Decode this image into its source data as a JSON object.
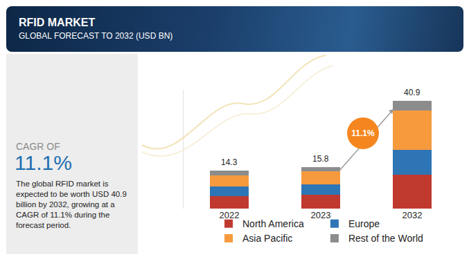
{
  "header": {
    "title": "RFID MARKET",
    "subtitle": "GLOBAL FORECAST TO 2032 (USD BN)"
  },
  "side_panel": {
    "label": "CAGR OF",
    "value": "11.1%",
    "text": "The global RFID market is expected to be worth USD 40.9 billion by 2032, growing at a CAGR of 11.1% during the forecast period."
  },
  "chart_data": {
    "type": "bar",
    "stacked": true,
    "categories": [
      "2022",
      "2023",
      "2032"
    ],
    "series": [
      {
        "name": "North America",
        "color": "#c0392f",
        "values": [
          4.8,
          5.2,
          12.8
        ]
      },
      {
        "name": "Europe",
        "color": "#2e75b6",
        "values": [
          3.5,
          3.9,
          9.5
        ]
      },
      {
        "name": "Asia Pacific",
        "color": "#f79a3e",
        "values": [
          4.3,
          5.0,
          14.8
        ]
      },
      {
        "name": "Rest of the World",
        "color": "#8c8c8c",
        "values": [
          1.7,
          1.7,
          3.8
        ]
      }
    ],
    "totals": [
      14.3,
      15.8,
      40.9
    ],
    "annotations": [
      {
        "text": "11.1%"
      }
    ],
    "ylim": [
      0,
      45
    ],
    "yticks": [],
    "tick_labels": "x",
    "legend": "bottom",
    "grid": false
  }
}
